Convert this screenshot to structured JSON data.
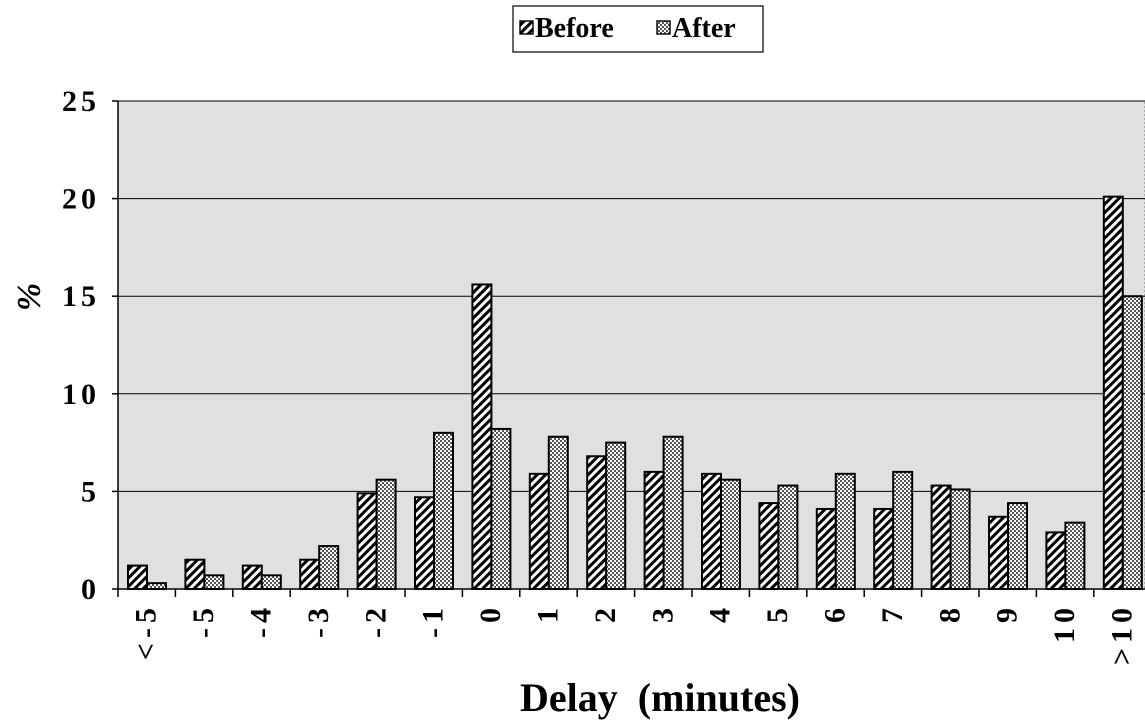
{
  "chart_data": {
    "type": "bar",
    "title": "",
    "xlabel": "Delay  (minutes)",
    "ylabel": "%",
    "ylim": [
      0,
      25
    ],
    "yticks": [
      "0",
      "5",
      "10",
      "15",
      "20",
      "25"
    ],
    "categories": [
      "<-5",
      "-5",
      "-4",
      "-3",
      "-2",
      "-1",
      "0",
      "1",
      "2",
      "3",
      "4",
      "5",
      "6",
      "7",
      "8",
      "9",
      "10",
      ">10"
    ],
    "series": [
      {
        "name": "Before",
        "values": [
          1.2,
          1.5,
          1.2,
          1.5,
          4.9,
          4.7,
          15.6,
          5.9,
          6.8,
          6.0,
          5.9,
          4.4,
          4.1,
          4.1,
          5.3,
          3.7,
          2.9,
          20.1
        ]
      },
      {
        "name": "After",
        "values": [
          0.3,
          0.7,
          0.7,
          2.2,
          5.6,
          8.0,
          8.2,
          7.8,
          7.5,
          7.8,
          5.6,
          5.3,
          5.9,
          6.0,
          5.1,
          4.4,
          3.4,
          15.0
        ]
      }
    ],
    "grid": true,
    "legend_position": "top-center",
    "colors": {
      "plot_background": "#e0e0e0",
      "bar_fill": "#ffffff",
      "bar_stroke": "#000000"
    }
  }
}
